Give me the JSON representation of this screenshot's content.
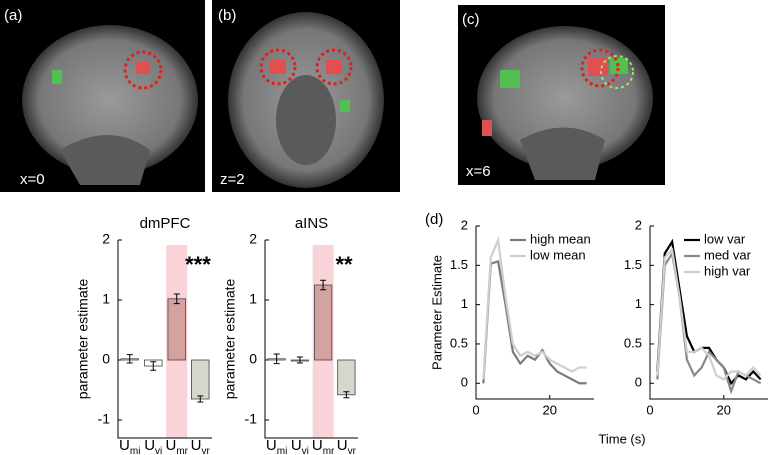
{
  "panels": [
    {
      "label": "(a)",
      "coord": "x=0"
    },
    {
      "label": "(b)",
      "coord": "z=2"
    },
    {
      "label": "(c)",
      "coord": "x=6"
    }
  ],
  "panel_d": "(d)",
  "chart_data": [
    {
      "type": "bar",
      "title": "dmPFC",
      "ylabel": "parameter estimate",
      "categories": [
        "Umi",
        "Uvi",
        "Umr",
        "Uvr"
      ],
      "values": [
        0.02,
        -0.1,
        1.02,
        -0.65
      ],
      "errors": [
        0.07,
        0.07,
        0.08,
        0.05
      ],
      "colors": [
        "#ffffff",
        "#ffffff",
        "#d4a3a0",
        "#d6d6cc"
      ],
      "highlight_index": 2,
      "highlight_color": "#f9d3d8",
      "annotation": "***",
      "ylim": [
        -1.3,
        2
      ],
      "yticks": [
        -1,
        0,
        1,
        2
      ]
    },
    {
      "type": "bar",
      "title": "aINS",
      "ylabel": "parameter estimate",
      "categories": [
        "Umi",
        "Uvi",
        "Umr",
        "Uvr"
      ],
      "values": [
        0.02,
        0.0,
        1.25,
        -0.58
      ],
      "errors": [
        0.08,
        0.05,
        0.08,
        0.05
      ],
      "colors": [
        "#ffffff",
        "#ffffff",
        "#d4a3a0",
        "#d6d6cc"
      ],
      "highlight_index": 2,
      "highlight_color": "#f9d3d8",
      "annotation": "**",
      "ylim": [
        -1.3,
        2
      ],
      "yticks": [
        -1,
        0,
        1,
        2
      ]
    },
    {
      "type": "line",
      "ylabel": "Parameter Estimate",
      "xlabel": "Time (s)",
      "legend": "upper right",
      "x": [
        2,
        4,
        6,
        8,
        10,
        12,
        14,
        16,
        18,
        20,
        22,
        24,
        26,
        28,
        30
      ],
      "xlim": [
        0,
        32
      ],
      "xticks": [
        0,
        20
      ],
      "ylim": [
        -0.2,
        2
      ],
      "yticks": [
        0,
        0.5,
        1,
        1.5,
        2
      ],
      "series": [
        {
          "name": "high mean",
          "color": "#7a7a7a",
          "values": [
            0,
            1.52,
            1.55,
            1.0,
            0.4,
            0.25,
            0.35,
            0.3,
            0.42,
            0.25,
            0.15,
            0.1,
            0.05,
            0.0,
            0.0
          ]
        },
        {
          "name": "low mean",
          "color": "#cfcfc8",
          "values": [
            0.05,
            1.6,
            1.82,
            1.1,
            0.5,
            0.35,
            0.4,
            0.35,
            0.4,
            0.3,
            0.25,
            0.2,
            0.15,
            0.2,
            0.2
          ]
        }
      ]
    },
    {
      "type": "line",
      "legend": "upper right",
      "x": [
        2,
        4,
        6,
        8,
        10,
        12,
        14,
        16,
        18,
        20,
        22,
        24,
        26,
        28,
        30
      ],
      "xlim": [
        0,
        32
      ],
      "xticks": [
        0,
        20
      ],
      "ylim": [
        -0.2,
        2
      ],
      "yticks": [
        0,
        0.5,
        1,
        1.5,
        2
      ],
      "series": [
        {
          "name": "low var",
          "color": "#000000",
          "values": [
            0.15,
            1.65,
            1.8,
            1.2,
            0.6,
            0.4,
            0.45,
            0.45,
            0.3,
            0.2,
            0.0,
            0.1,
            0.05,
            0.15,
            0.05
          ]
        },
        {
          "name": "med var",
          "color": "#888888",
          "values": [
            0.05,
            1.5,
            1.65,
            1.1,
            0.3,
            0.1,
            0.2,
            0.4,
            0.3,
            0.2,
            -0.1,
            0.15,
            0.1,
            0.05,
            0.0
          ]
        },
        {
          "name": "high var",
          "color": "#cfcfc8",
          "values": [
            0.1,
            1.6,
            1.7,
            1.1,
            0.4,
            0.4,
            0.45,
            0.35,
            0.1,
            0.05,
            0.15,
            0.15,
            0.1,
            0.2,
            0.1
          ]
        }
      ]
    }
  ]
}
